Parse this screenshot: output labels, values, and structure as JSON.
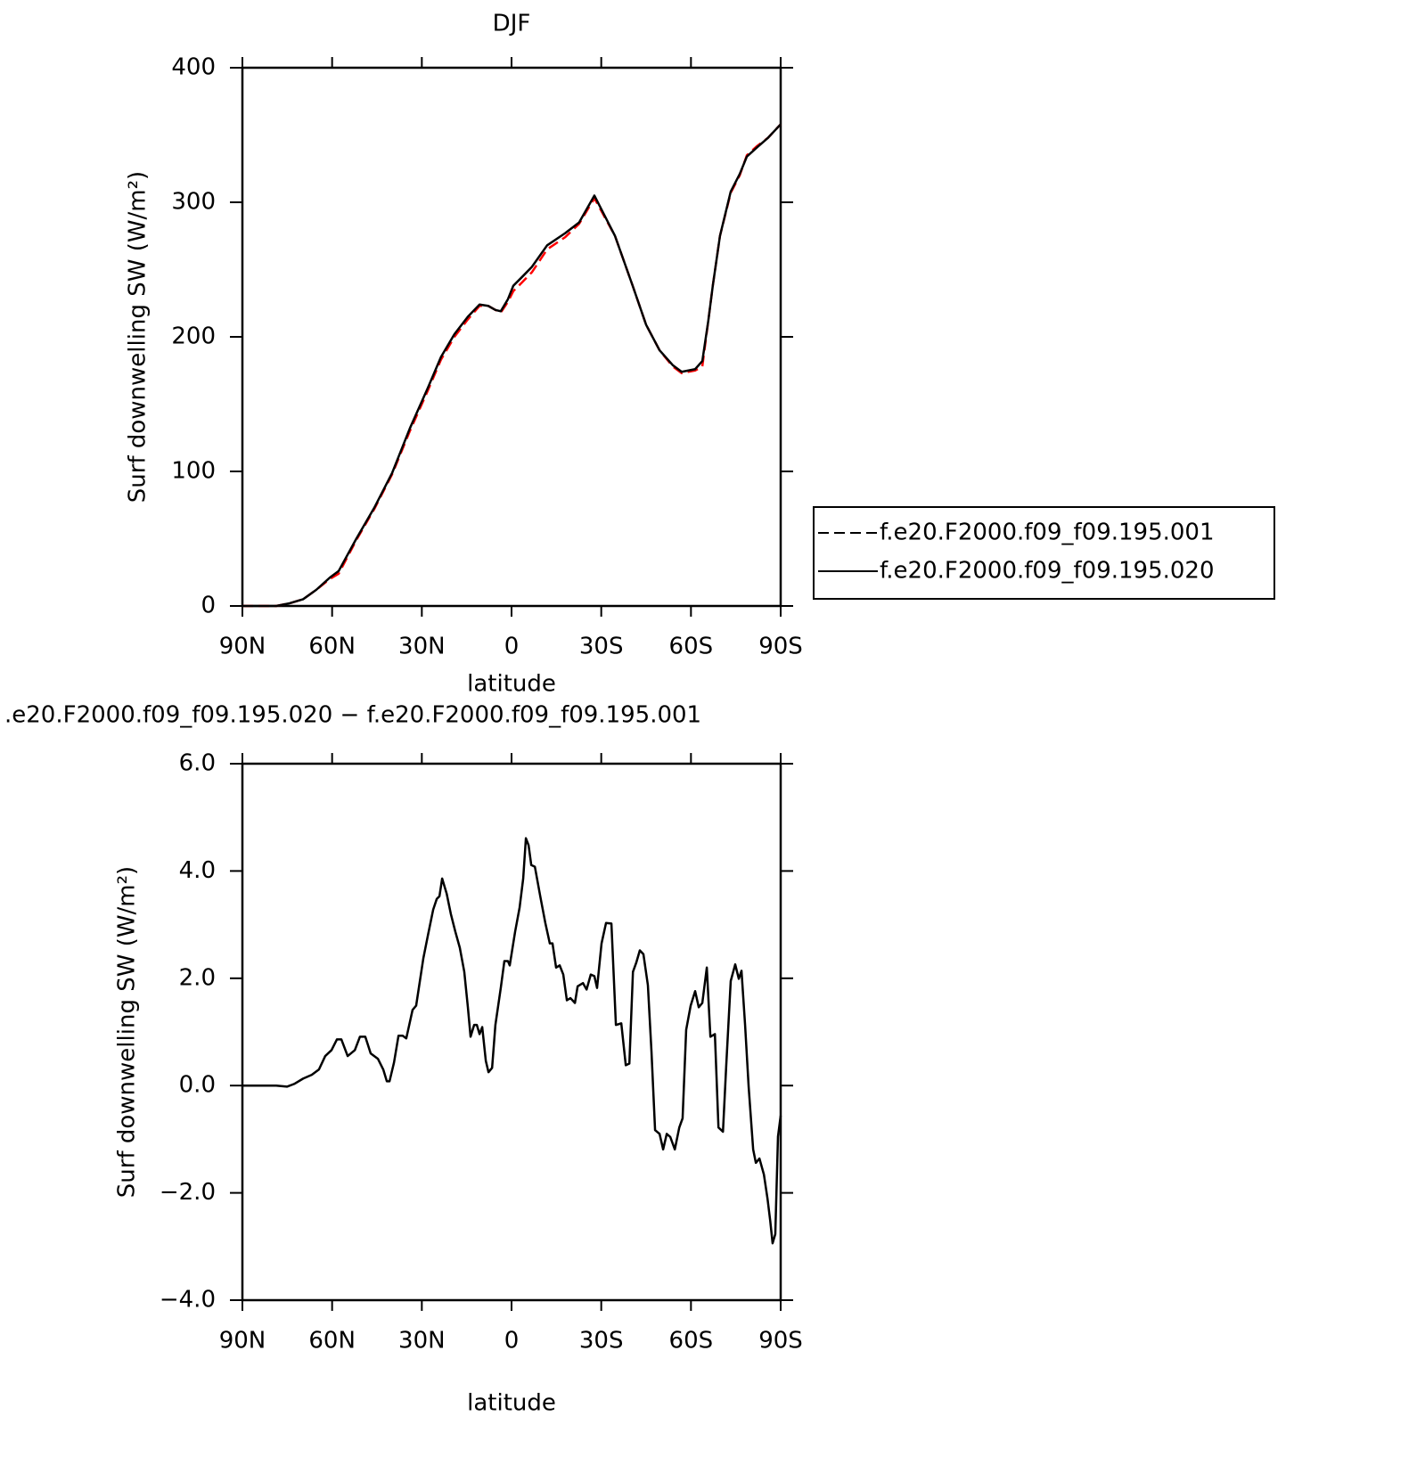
{
  "chart_data": [
    {
      "type": "line",
      "title": "DJF",
      "xlabel": "latitude",
      "ylabel": "Surf downwelling SW (W/m²)",
      "xlim": [
        90,
        -90
      ],
      "xticks": [
        {
          "value": 90,
          "label": "90N"
        },
        {
          "value": 60,
          "label": "60N"
        },
        {
          "value": 30,
          "label": "30N"
        },
        0,
        {
          "value": -30,
          "label": "30S"
        },
        {
          "value": -60,
          "label": "60S"
        },
        {
          "value": -90,
          "label": "90S"
        }
      ],
      "ylim": [
        0,
        400
      ],
      "yticks": [
        0,
        100,
        200,
        300,
        400
      ],
      "legend": "right",
      "x": [
        90,
        78.7,
        74.2,
        69.7,
        65.3,
        60.8,
        57.8,
        51.9,
        45.9,
        39.9,
        34.0,
        28.0,
        23.6,
        19.1,
        14.6,
        10.7,
        7.8,
        5.4,
        3.6,
        1.2,
        -0.6,
        -3.3,
        -6.8,
        -11.9,
        -17.9,
        -22.6,
        -27.7,
        -34.6,
        -40.5,
        -45.0,
        -49.5,
        -53.9,
        -56.9,
        -61.4,
        -63.8,
        -65.8,
        -67.3,
        -69.7,
        -73.3,
        -76.3,
        -78.7,
        -82.2,
        -85.8,
        -90
      ],
      "series": [
        {
          "name": "f.e20.F2000.f09_f09.195.001",
          "color": "#ff0000",
          "dash": true,
          "values": [
            0,
            0,
            2,
            5,
            12,
            20,
            24,
            49,
            72,
            98,
            130,
            160,
            183,
            200,
            213,
            223,
            223,
            220,
            218,
            226,
            234,
            240,
            248,
            265,
            274,
            284,
            303,
            275,
            238,
            209,
            190,
            178,
            173,
            175,
            178,
            212,
            238,
            275,
            307,
            320,
            335,
            342,
            348,
            358
          ]
        },
        {
          "name": "f.e20.F2000.f09_f09.195.020",
          "color": "#000000",
          "dash": false,
          "values": [
            0,
            0,
            2,
            5,
            12,
            21,
            26,
            50,
            73,
            99,
            132,
            162,
            185,
            202,
            215,
            224,
            223,
            220,
            219,
            228,
            238,
            244,
            252,
            268,
            277,
            285,
            305,
            275,
            238,
            209,
            190,
            179,
            174,
            176,
            182,
            212,
            238,
            275,
            308,
            321,
            334,
            341,
            348,
            358
          ]
        }
      ]
    },
    {
      "type": "line",
      "title": ".e20.F2000.f09_f09.195.020 − f.e20.F2000.f09_f09.195.001",
      "xlabel": "latitude",
      "ylabel": "Surf downwelling SW (W/m²)",
      "xlim": [
        90,
        -90
      ],
      "xticks": [
        {
          "value": 90,
          "label": "90N"
        },
        {
          "value": 60,
          "label": "60N"
        },
        {
          "value": 30,
          "label": "30N"
        },
        0,
        {
          "value": -30,
          "label": "30S"
        },
        {
          "value": -60,
          "label": "60S"
        },
        {
          "value": -90,
          "label": "90S"
        }
      ],
      "ylim": [
        -4,
        6
      ],
      "yticks": [
        {
          "value": -4,
          "label": "−4.0"
        },
        {
          "value": -2,
          "label": "−2.0"
        },
        {
          "value": 0,
          "label": "0.0"
        },
        {
          "value": 2,
          "label": "2.0"
        },
        {
          "value": 4,
          "label": "4.0"
        },
        {
          "value": 6,
          "label": "6.0"
        }
      ],
      "color": "#000000",
      "x": [
        90,
        78.7,
        75.1,
        72.7,
        69.7,
        66.8,
        64.4,
        62.3,
        60.2,
        58.4,
        56.9,
        54.8,
        52.4,
        50.7,
        48.9,
        47.1,
        44.7,
        42.9,
        41.7,
        40.8,
        39.3,
        37.8,
        36.4,
        35.2,
        33.1,
        31.9,
        29.5,
        28.0,
        26.2,
        25.0,
        24.1,
        23.2,
        21.7,
        20.3,
        18.8,
        17.3,
        15.8,
        14.6,
        13.7,
        12.5,
        11.6,
        10.7,
        9.8,
        8.6,
        7.7,
        6.5,
        5.4,
        3.6,
        2.4,
        1.2,
        0.6,
        -1.2,
        -2.7,
        -3.9,
        -4.8,
        -5.7,
        -6.6,
        -7.8,
        -9.6,
        -11.3,
        -12.8,
        -13.7,
        -14.9,
        -16.1,
        -17.3,
        -18.5,
        -19.7,
        -21.2,
        -22.1,
        -23.9,
        -25.1,
        -26.5,
        -27.7,
        -28.6,
        -30.1,
        -31.6,
        -33.4,
        -34.9,
        -36.7,
        -38.2,
        -39.4,
        -40.6,
        -41.7,
        -42.9,
        -44.1,
        -45.6,
        -46.8,
        -48.0,
        -49.5,
        -50.7,
        -51.9,
        -53.1,
        -54.6,
        -56.1,
        -57.2,
        -58.4,
        -59.9,
        -61.4,
        -62.6,
        -63.8,
        -65.3,
        -66.5,
        -68.0,
        -69.2,
        -70.7,
        -71.8,
        -73.3,
        -74.8,
        -76.0,
        -76.9,
        -78.1,
        -79.3,
        -80.8,
        -81.7,
        -82.9,
        -84.4,
        -85.6,
        -86.5,
        -87.3,
        -88.2,
        -89.1,
        -90.0
      ],
      "values": [
        0,
        0,
        -0.02,
        0.03,
        0.13,
        0.2,
        0.3,
        0.55,
        0.66,
        0.86,
        0.86,
        0.55,
        0.66,
        0.91,
        0.91,
        0.6,
        0.5,
        0.3,
        0.08,
        0.08,
        0.43,
        0.93,
        0.93,
        0.88,
        1.41,
        1.49,
        2.37,
        2.79,
        3.28,
        3.48,
        3.53,
        3.86,
        3.58,
        3.2,
        2.87,
        2.57,
        2.12,
        1.46,
        0.91,
        1.13,
        1.13,
        0.96,
        1.09,
        0.46,
        0.25,
        0.33,
        1.13,
        1.82,
        2.32,
        2.32,
        2.24,
        2.87,
        3.32,
        3.86,
        4.61,
        4.48,
        4.11,
        4.08,
        3.53,
        3.03,
        2.65,
        2.65,
        2.2,
        2.24,
        2.07,
        1.59,
        1.63,
        1.54,
        1.85,
        1.91,
        1.79,
        2.07,
        2.04,
        1.82,
        2.65,
        3.03,
        3.02,
        1.13,
        1.16,
        0.38,
        0.41,
        2.12,
        2.29,
        2.52,
        2.45,
        1.87,
        0.63,
        -0.83,
        -0.9,
        -1.19,
        -0.9,
        -0.96,
        -1.19,
        -0.78,
        -0.61,
        1.04,
        1.49,
        1.76,
        1.46,
        1.54,
        2.2,
        0.91,
        0.96,
        -0.78,
        -0.86,
        0.38,
        1.95,
        2.26,
        1.99,
        2.14,
        1.13,
        -0.03,
        -1.19,
        -1.44,
        -1.36,
        -1.66,
        -2.11,
        -2.52,
        -2.94,
        -2.77,
        -0.95,
        -0.56
      ]
    }
  ]
}
